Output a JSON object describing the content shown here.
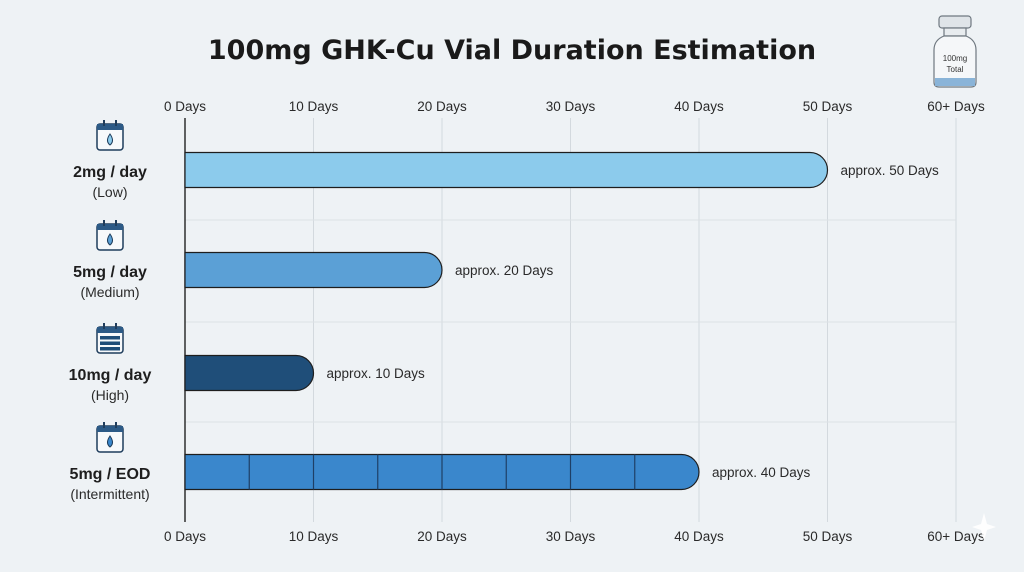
{
  "chart_data": {
    "type": "bar",
    "orientation": "horizontal",
    "title": "100mg GHK-Cu Vial Duration Estimation",
    "xlabel": "",
    "ylabel": "",
    "xlim": [
      0,
      60
    ],
    "x_ticks": [
      {
        "value": 0,
        "label": "0 Days"
      },
      {
        "value": 10,
        "label": "10 Days"
      },
      {
        "value": 20,
        "label": "20 Days"
      },
      {
        "value": 30,
        "label": "30 Days"
      },
      {
        "value": 40,
        "label": "40 Days"
      },
      {
        "value": 50,
        "label": "50 Days"
      },
      {
        "value": 60,
        "label": "60+ Days"
      }
    ],
    "grid": true,
    "categories": [
      {
        "label": "2mg / day",
        "sublabel": "(Low)",
        "value": 50,
        "data_label": "approx. 50 Days",
        "color": "#8ccbec",
        "icon": "calendar-drop-icon",
        "segmented": false
      },
      {
        "label": "5mg / day",
        "sublabel": "(Medium)",
        "value": 20,
        "data_label": "approx. 20 Days",
        "color": "#5ba0d6",
        "icon": "calendar-drop-icon",
        "segmented": false
      },
      {
        "label": "10mg / day",
        "sublabel": "(High)",
        "value": 10,
        "data_label": "approx. 10 Days",
        "color": "#1f4e79",
        "icon": "calendar-filled-icon",
        "segmented": false
      },
      {
        "label": "5mg / EOD",
        "sublabel": "(Intermittent)",
        "value": 40,
        "data_label": "approx. 40 Days",
        "color": "#3a87cc",
        "icon": "calendar-drop-icon",
        "segmented": true,
        "segment_days": 5
      }
    ]
  },
  "vial": {
    "label_line1": "100mg",
    "label_line2": "Total",
    "icon": "vial-icon"
  }
}
